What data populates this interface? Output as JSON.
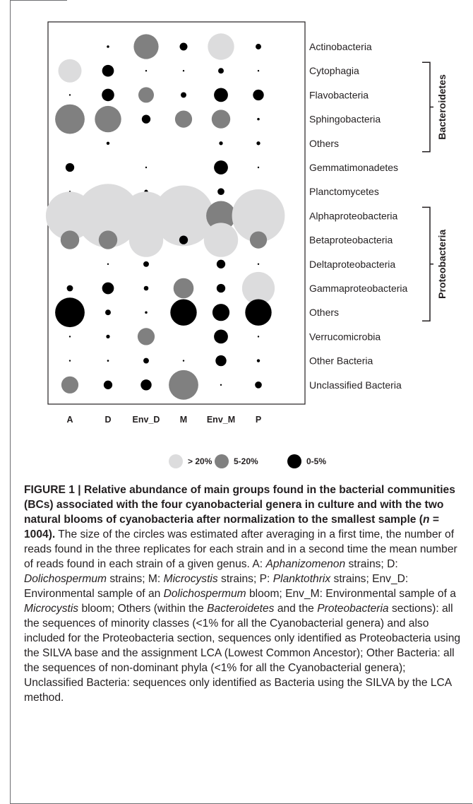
{
  "chart_data": {
    "type": "bubble",
    "columns": [
      "A",
      "D",
      "Env_D",
      "M",
      "Env_M",
      "P"
    ],
    "rows": [
      {
        "label": "Actinobacteria",
        "values": [
          null,
          "0-5%",
          "5-20%",
          "0-5%",
          ">20%",
          "0-5%"
        ],
        "sizes": [
          0,
          0.08,
          0.8,
          0.25,
          0.85,
          0.18
        ]
      },
      {
        "label": "Cytophagia",
        "values": [
          ">20%",
          "0-5%",
          "0-5%",
          "0-5%",
          "0-5%",
          "0-5%"
        ],
        "sizes": [
          0.75,
          0.38,
          0.05,
          0.05,
          0.18,
          0.03
        ]
      },
      {
        "label": "Flavobacteria",
        "values": [
          "0-5%",
          "0-5%",
          "5-20%",
          "0-5%",
          "0-5%",
          "0-5%"
        ],
        "sizes": [
          0.05,
          0.4,
          0.5,
          0.18,
          0.45,
          0.35
        ]
      },
      {
        "label": "Sphingobacteria",
        "values": [
          "5-20%",
          "5-20%",
          "0-5%",
          "5-20%",
          "5-20%",
          "0-5%"
        ],
        "sizes": [
          0.95,
          0.85,
          0.28,
          0.55,
          0.6,
          0.08
        ]
      },
      {
        "label": "Others",
        "values": [
          null,
          "0-5%",
          null,
          null,
          "0-5%",
          "0-5%"
        ],
        "sizes": [
          0,
          0.1,
          0,
          0,
          0.12,
          0.12
        ]
      },
      {
        "label": "Gemmatimonadetes",
        "values": [
          "0-5%",
          null,
          "0-5%",
          null,
          "0-5%",
          "0-5%"
        ],
        "sizes": [
          0.28,
          0,
          0.04,
          0,
          0.45,
          0.03
        ]
      },
      {
        "label": "Planctomycetes",
        "values": [
          "0-5%",
          null,
          "0-5%",
          "0-5%",
          "0-5%",
          null
        ],
        "sizes": [
          0.04,
          0,
          0.12,
          0.35,
          0.22,
          0
        ]
      },
      {
        "label": "Alphaproteobacteria",
        "values": [
          ">20%",
          ">20%",
          ">20%",
          ">20%",
          "5-20%",
          ">20%"
        ],
        "sizes": [
          1.55,
          2.05,
          1.55,
          1.95,
          0.95,
          1.7
        ]
      },
      {
        "label": "Betaproteobacteria",
        "values": [
          "5-20%",
          "5-20%",
          ">20%",
          "0-5%",
          ">20%",
          "5-20%"
        ],
        "sizes": [
          0.6,
          0.6,
          1.1,
          0.28,
          1.1,
          0.55
        ]
      },
      {
        "label": "Deltaproteobacteria",
        "values": [
          null,
          "0-5%",
          "0-5%",
          null,
          "0-5%",
          "0-5%"
        ],
        "sizes": [
          0,
          0.05,
          0.18,
          0,
          0.28,
          0.04
        ]
      },
      {
        "label": "Gammaproteobacteria",
        "values": [
          "0-5%",
          "0-5%",
          "0-5%",
          "5-20%",
          "0-5%",
          ">20%"
        ],
        "sizes": [
          0.2,
          0.38,
          0.15,
          0.65,
          0.28,
          1.05
        ]
      },
      {
        "label": "Others",
        "values": [
          "0-5%",
          "0-5%",
          "0-5%",
          "0-5%",
          "0-5%",
          "0-5%"
        ],
        "sizes": [
          0.95,
          0.18,
          0.08,
          0.85,
          0.55,
          0.85
        ]
      },
      {
        "label": "Verrucomicrobia",
        "values": [
          "0-5%",
          "0-5%",
          "5-20%",
          null,
          "0-5%",
          "0-5%"
        ],
        "sizes": [
          0.04,
          0.12,
          0.55,
          0,
          0.45,
          0.03
        ]
      },
      {
        "label": "Other Bacteria",
        "values": [
          "0-5%",
          "0-5%",
          "0-5%",
          "0-5%",
          "0-5%",
          "0-5%"
        ],
        "sizes": [
          0.04,
          0.06,
          0.18,
          0.05,
          0.35,
          0.1
        ]
      },
      {
        "label": "Unclassified Bacteria",
        "values": [
          "5-20%",
          "0-5%",
          "0-5%",
          "5-20%",
          "0-5%",
          "0-5%"
        ],
        "sizes": [
          0.55,
          0.28,
          0.35,
          0.95,
          0.05,
          0.22
        ]
      }
    ],
    "brackets": [
      {
        "label": "Bacteroidetes",
        "from_row": 1,
        "to_row": 4
      },
      {
        "label": "Proteobacteria",
        "from_row": 7,
        "to_row": 11
      }
    ],
    "legend": [
      {
        "label": "> 20%",
        "color": "#dcdcdd"
      },
      {
        "label": "5-20%",
        "color": "#808080"
      },
      {
        "label": "0-5%",
        "color": "#000000"
      }
    ],
    "colors": {
      ">20%": "#dcdcdd",
      "5-20%": "#808080",
      "0-5%": "#000000"
    }
  },
  "caption": {
    "figure_label": "FIGURE 1 | Relative abundance of main groups found in the bacterial communities (BCs) associated with the four cyanobacterial genera in culture and with the two natural blooms of cyanobacteria after normalization to the smallest sample (",
    "n_symbol": "n",
    "n_value": " = 1004).",
    "body": [
      {
        "t": " The size of the circles was estimated after averaging in a first time, the number of reads found in the three replicates for each strain and in a second time the mean number of reads found in each strain of a given genus. A: ",
        "i": false
      },
      {
        "t": "Aphanizomenon",
        "i": true
      },
      {
        "t": " strains; D: ",
        "i": false
      },
      {
        "t": "Dolichospermum",
        "i": true
      },
      {
        "t": " strains; M: ",
        "i": false
      },
      {
        "t": "Microcystis",
        "i": true
      },
      {
        "t": " strains; P: ",
        "i": false
      },
      {
        "t": "Planktothrix",
        "i": true
      },
      {
        "t": " strains; Env_D: Environmental sample of an ",
        "i": false
      },
      {
        "t": "Dolichospermum",
        "i": true
      },
      {
        "t": " bloom; Env_M: Environmental sample of a ",
        "i": false
      },
      {
        "t": "Microcystis",
        "i": true
      },
      {
        "t": " bloom; Others (within the ",
        "i": false
      },
      {
        "t": "Bacteroidetes",
        "i": true
      },
      {
        "t": " and the ",
        "i": false
      },
      {
        "t": "Proteobacteria",
        "i": true
      },
      {
        "t": " sections): all the sequences of minority classes (<1% for all the Cyanobacterial genera) and also included for the Proteobacteria section, sequences only identified as Proteobacteria using the SILVA base and the assignment LCA (Lowest Common Ancestor); Other Bacteria: all the sequences of non-dominant phyla (<1% for all the Cyanobacterial genera); Unclassified Bacteria: sequences only identified as Bacteria using the SILVA by the LCA method.",
        "i": false
      }
    ]
  }
}
